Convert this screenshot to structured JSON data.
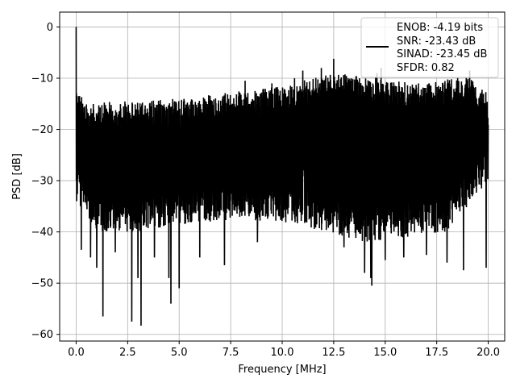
{
  "chart_data": {
    "type": "line",
    "xlabel": "Frequency [MHz]",
    "ylabel": "PSD [dB]",
    "xlim": [
      -0.8,
      20.8
    ],
    "ylim": [
      -61.3,
      2.9
    ],
    "xticks": [
      0.0,
      2.5,
      5.0,
      7.5,
      10.0,
      12.5,
      15.0,
      17.5,
      20.0
    ],
    "xtick_labels": [
      "0.0",
      "2.5",
      "5.0",
      "7.5",
      "10.0",
      "12.5",
      "15.0",
      "17.5",
      "20.0"
    ],
    "yticks": [
      0,
      -10,
      -20,
      -30,
      -40,
      -50,
      -60
    ],
    "ytick_labels": [
      "0",
      "−10",
      "−20",
      "−30",
      "−40",
      "−50",
      "−60"
    ],
    "grid": true,
    "legend_position": "top-right",
    "legend_lines": [
      "ENOB: -4.19 bits",
      "SNR: -23.43 dB",
      "SINAD: -23.45 dB",
      "SFDR: 0.82"
    ],
    "colors": {
      "series": "#000000",
      "grid": "#b0b0b0"
    },
    "series": [
      {
        "description": "noise-like PSD trace spanning 0 to 20 MHz",
        "x_range": [
          0.0,
          20.0
        ],
        "peak": {
          "x": 0.0,
          "y": 0.0
        },
        "upper_envelope": [
          [
            0.05,
            -12
          ],
          [
            0.5,
            -15
          ],
          [
            2.0,
            -14.5
          ],
          [
            5.0,
            -14
          ],
          [
            9.0,
            -12
          ],
          [
            10.0,
            -11.5
          ],
          [
            12.5,
            -9
          ],
          [
            14.5,
            -9.5
          ],
          [
            15.0,
            -10.5
          ],
          [
            17.0,
            -11
          ],
          [
            19.0,
            -9.5
          ],
          [
            20.0,
            -13
          ]
        ],
        "lower_envelope": [
          [
            0.05,
            -34
          ],
          [
            1.0,
            -40
          ],
          [
            3.0,
            -40
          ],
          [
            6.0,
            -38
          ],
          [
            10.0,
            -38
          ],
          [
            14.0,
            -42
          ],
          [
            18.0,
            -40
          ],
          [
            20.0,
            -30
          ]
        ],
        "notable_dips": [
          {
            "x": 0.25,
            "y": -43.5
          },
          {
            "x": 0.7,
            "y": -45
          },
          {
            "x": 1.0,
            "y": -47
          },
          {
            "x": 1.3,
            "y": -56.5
          },
          {
            "x": 1.9,
            "y": -44
          },
          {
            "x": 2.7,
            "y": -57.5
          },
          {
            "x": 3.0,
            "y": -49
          },
          {
            "x": 3.15,
            "y": -58.3
          },
          {
            "x": 3.8,
            "y": -45
          },
          {
            "x": 4.5,
            "y": -49
          },
          {
            "x": 4.6,
            "y": -54
          },
          {
            "x": 5.0,
            "y": -51
          },
          {
            "x": 6.0,
            "y": -45
          },
          {
            "x": 7.2,
            "y": -46.5
          },
          {
            "x": 8.8,
            "y": -42
          },
          {
            "x": 11.0,
            "y": -44
          },
          {
            "x": 11.9,
            "y": -52
          },
          {
            "x": 13.0,
            "y": -43
          },
          {
            "x": 14.0,
            "y": -48
          },
          {
            "x": 14.3,
            "y": -49
          },
          {
            "x": 14.35,
            "y": -50.5
          },
          {
            "x": 15.0,
            "y": -45.5
          },
          {
            "x": 15.9,
            "y": -45
          },
          {
            "x": 17.0,
            "y": -44.5
          },
          {
            "x": 18.0,
            "y": -46
          },
          {
            "x": 18.8,
            "y": -47.5
          },
          {
            "x": 19.9,
            "y": -47
          }
        ],
        "notable_spikes": [
          {
            "x": 12.5,
            "y": -6.2
          },
          {
            "x": 11.9,
            "y": -8
          },
          {
            "x": 14.8,
            "y": -8
          },
          {
            "x": 11.0,
            "y": -8.5
          },
          {
            "x": 14.6,
            "y": -9
          },
          {
            "x": 19.1,
            "y": -8.5
          },
          {
            "x": 10.6,
            "y": -10
          },
          {
            "x": 8.2,
            "y": -10.5
          },
          {
            "x": 9.5,
            "y": -11
          }
        ],
        "wide_dip": {
          "x": 11.05,
          "y": -27
        }
      }
    ]
  }
}
